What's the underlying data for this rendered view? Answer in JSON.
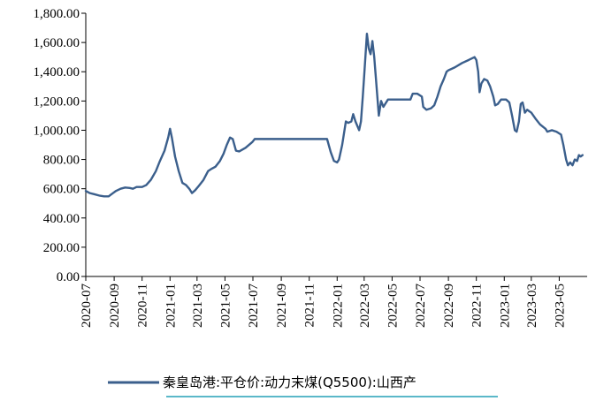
{
  "chart_data": {
    "type": "line",
    "title": "",
    "xlabel": "",
    "ylabel": "",
    "ylim": [
      0,
      1800
    ],
    "yticks": [
      0,
      200,
      400,
      600,
      800,
      1000,
      1200,
      1400,
      1600,
      1800
    ],
    "ytick_labels": [
      "0.00",
      "200.00",
      "400.00",
      "600.00",
      "800.00",
      "1,000.00",
      "1,200.00",
      "1,400.00",
      "1,600.00",
      "1,800.00"
    ],
    "xlim": [
      "2020-07-01",
      "2023-07-01"
    ],
    "xtick_labels": [
      "2020-07",
      "2020-09",
      "2020-11",
      "2021-01",
      "2021-03",
      "2021-05",
      "2021-07",
      "2021-09",
      "2021-11",
      "2022-01",
      "2022-03",
      "2022-05",
      "2022-07",
      "2022-09",
      "2022-11",
      "2023-01",
      "2023-03",
      "2023-05"
    ],
    "grid": false,
    "legend_position": "bottom",
    "line_color": "#3b5f8c",
    "legend_underline_color": "#5bb8c9",
    "series": [
      {
        "name": "秦皇岛港:平仓价:动力末煤(Q5500):山西产",
        "points": [
          [
            "2020-07-01",
            585
          ],
          [
            "2020-07-10",
            570
          ],
          [
            "2020-07-20",
            562
          ],
          [
            "2020-08-01",
            552
          ],
          [
            "2020-08-10",
            548
          ],
          [
            "2020-08-20",
            548
          ],
          [
            "2020-08-25",
            560
          ],
          [
            "2020-09-05",
            585
          ],
          [
            "2020-09-15",
            600
          ],
          [
            "2020-09-25",
            608
          ],
          [
            "2020-10-05",
            605
          ],
          [
            "2020-10-12",
            600
          ],
          [
            "2020-10-20",
            612
          ],
          [
            "2020-11-01",
            612
          ],
          [
            "2020-11-10",
            625
          ],
          [
            "2020-11-20",
            660
          ],
          [
            "2020-12-01",
            720
          ],
          [
            "2020-12-10",
            790
          ],
          [
            "2020-12-20",
            860
          ],
          [
            "2020-12-28",
            950
          ],
          [
            "2021-01-01",
            1010
          ],
          [
            "2021-01-05",
            950
          ],
          [
            "2021-01-12",
            820
          ],
          [
            "2021-01-20",
            720
          ],
          [
            "2021-01-28",
            640
          ],
          [
            "2021-02-05",
            625
          ],
          [
            "2021-02-12",
            600
          ],
          [
            "2021-02-18",
            570
          ],
          [
            "2021-02-25",
            590
          ],
          [
            "2021-03-05",
            620
          ],
          [
            "2021-03-15",
            660
          ],
          [
            "2021-03-25",
            720
          ],
          [
            "2021-04-01",
            735
          ],
          [
            "2021-04-10",
            750
          ],
          [
            "2021-04-20",
            790
          ],
          [
            "2021-04-28",
            840
          ],
          [
            "2021-05-05",
            900
          ],
          [
            "2021-05-12",
            950
          ],
          [
            "2021-05-18",
            940
          ],
          [
            "2021-05-25",
            860
          ],
          [
            "2021-06-01",
            855
          ],
          [
            "2021-06-15",
            880
          ],
          [
            "2021-06-30",
            920
          ],
          [
            "2021-07-05",
            940
          ],
          [
            "2021-08-01",
            940
          ],
          [
            "2021-09-01",
            940
          ],
          [
            "2021-10-01",
            940
          ],
          [
            "2021-11-01",
            940
          ],
          [
            "2021-12-01",
            940
          ],
          [
            "2021-12-10",
            940
          ],
          [
            "2021-12-18",
            850
          ],
          [
            "2021-12-25",
            790
          ],
          [
            "2022-01-01",
            780
          ],
          [
            "2022-01-05",
            800
          ],
          [
            "2022-01-12",
            900
          ],
          [
            "2022-01-20",
            1060
          ],
          [
            "2022-01-25",
            1050
          ],
          [
            "2022-02-01",
            1060
          ],
          [
            "2022-02-05",
            1110
          ],
          [
            "2022-02-10",
            1060
          ],
          [
            "2022-02-18",
            1000
          ],
          [
            "2022-02-22",
            1060
          ],
          [
            "2022-02-26",
            1230
          ],
          [
            "2022-03-02",
            1420
          ],
          [
            "2022-03-07",
            1660
          ],
          [
            "2022-03-11",
            1560
          ],
          [
            "2022-03-15",
            1520
          ],
          [
            "2022-03-19",
            1610
          ],
          [
            "2022-03-23",
            1500
          ],
          [
            "2022-03-28",
            1300
          ],
          [
            "2022-04-02",
            1100
          ],
          [
            "2022-04-07",
            1200
          ],
          [
            "2022-04-12",
            1160
          ],
          [
            "2022-04-16",
            1180
          ],
          [
            "2022-04-22",
            1210
          ],
          [
            "2022-05-01",
            1210
          ],
          [
            "2022-06-01",
            1210
          ],
          [
            "2022-06-10",
            1210
          ],
          [
            "2022-06-15",
            1250
          ],
          [
            "2022-06-25",
            1250
          ],
          [
            "2022-07-05",
            1230
          ],
          [
            "2022-07-08",
            1160
          ],
          [
            "2022-07-15",
            1140
          ],
          [
            "2022-07-25",
            1150
          ],
          [
            "2022-08-01",
            1170
          ],
          [
            "2022-08-08",
            1230
          ],
          [
            "2022-08-15",
            1300
          ],
          [
            "2022-08-22",
            1350
          ],
          [
            "2022-08-28",
            1400
          ],
          [
            "2022-09-01",
            1410
          ],
          [
            "2022-09-15",
            1430
          ],
          [
            "2022-10-01",
            1460
          ],
          [
            "2022-10-15",
            1480
          ],
          [
            "2022-10-28",
            1500
          ],
          [
            "2022-11-01",
            1480
          ],
          [
            "2022-11-05",
            1400
          ],
          [
            "2022-11-08",
            1260
          ],
          [
            "2022-11-12",
            1320
          ],
          [
            "2022-11-18",
            1350
          ],
          [
            "2022-11-25",
            1340
          ],
          [
            "2022-12-01",
            1300
          ],
          [
            "2022-12-08",
            1230
          ],
          [
            "2022-12-12",
            1170
          ],
          [
            "2022-12-18",
            1180
          ],
          [
            "2022-12-25",
            1210
          ],
          [
            "2023-01-05",
            1210
          ],
          [
            "2023-01-12",
            1190
          ],
          [
            "2023-01-18",
            1100
          ],
          [
            "2023-01-24",
            1000
          ],
          [
            "2023-01-28",
            990
          ],
          [
            "2023-02-02",
            1060
          ],
          [
            "2023-02-06",
            1180
          ],
          [
            "2023-02-10",
            1190
          ],
          [
            "2023-02-15",
            1120
          ],
          [
            "2023-02-20",
            1140
          ],
          [
            "2023-03-01",
            1120
          ],
          [
            "2023-03-10",
            1080
          ],
          [
            "2023-03-20",
            1040
          ],
          [
            "2023-04-01",
            1010
          ],
          [
            "2023-04-05",
            990
          ],
          [
            "2023-04-15",
            1000
          ],
          [
            "2023-04-25",
            990
          ],
          [
            "2023-05-05",
            970
          ],
          [
            "2023-05-10",
            900
          ],
          [
            "2023-05-16",
            800
          ],
          [
            "2023-05-20",
            760
          ],
          [
            "2023-05-25",
            780
          ],
          [
            "2023-05-30",
            760
          ],
          [
            "2023-06-04",
            800
          ],
          [
            "2023-06-09",
            790
          ],
          [
            "2023-06-13",
            830
          ],
          [
            "2023-06-17",
            820
          ],
          [
            "2023-06-21",
            830
          ]
        ]
      }
    ]
  }
}
